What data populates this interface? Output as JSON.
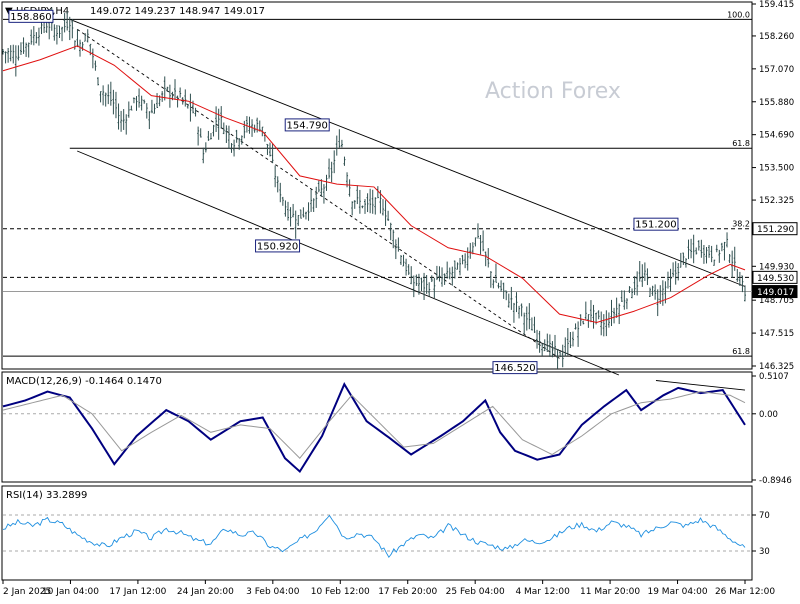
{
  "header": {
    "symbol": "USDJPY,H4",
    "ohlc": "149.072 149.237 148.947 149.017"
  },
  "watermark": "Action Forex",
  "chart_data": [
    {
      "type": "candlestick",
      "panel": "price",
      "symbol": "USDJPY",
      "timeframe": "H4",
      "ylim": [
        146.325,
        159.415
      ],
      "y_ticks": [
        "159.415",
        "158.260",
        "157.070",
        "155.880",
        "154.690",
        "153.500",
        "152.325",
        "151.290",
        "149.930",
        "148.705",
        "147.515",
        "146.325"
      ],
      "x_ticks": [
        "2 Jan 2025",
        "10 Jan 04:00",
        "17 Jan 12:00",
        "24 Jan 20:00",
        "3 Feb 04:00",
        "10 Feb 12:00",
        "17 Feb 20:00",
        "25 Feb 04:00",
        "4 Mar 12:00",
        "11 Mar 20:00",
        "19 Mar 04:00",
        "26 Mar 12:00"
      ],
      "close_series": [
        {
          "t": 0,
          "v": 157.7
        },
        {
          "t": 0.02,
          "v": 157.6
        },
        {
          "t": 0.04,
          "v": 158.2
        },
        {
          "t": 0.06,
          "v": 158.7
        },
        {
          "t": 0.075,
          "v": 158.4
        },
        {
          "t": 0.09,
          "v": 158.8
        },
        {
          "t": 0.1,
          "v": 157.9
        },
        {
          "t": 0.115,
          "v": 158.3
        },
        {
          "t": 0.13,
          "v": 156.4
        },
        {
          "t": 0.15,
          "v": 155.8
        },
        {
          "t": 0.16,
          "v": 155.1
        },
        {
          "t": 0.18,
          "v": 156.0
        },
        {
          "t": 0.2,
          "v": 155.5
        },
        {
          "t": 0.22,
          "v": 156.3
        },
        {
          "t": 0.24,
          "v": 156.0
        },
        {
          "t": 0.26,
          "v": 155.4
        },
        {
          "t": 0.27,
          "v": 154.0
        },
        {
          "t": 0.29,
          "v": 155.4
        },
        {
          "t": 0.31,
          "v": 154.4
        },
        {
          "t": 0.33,
          "v": 155.0
        },
        {
          "t": 0.35,
          "v": 155.0
        },
        {
          "t": 0.37,
          "v": 152.9
        },
        {
          "t": 0.385,
          "v": 151.8
        },
        {
          "t": 0.4,
          "v": 151.7
        },
        {
          "t": 0.42,
          "v": 152.3
        },
        {
          "t": 0.44,
          "v": 153.1
        },
        {
          "t": 0.455,
          "v": 154.6
        },
        {
          "t": 0.47,
          "v": 152.4
        },
        {
          "t": 0.49,
          "v": 152.1
        },
        {
          "t": 0.51,
          "v": 152.3
        },
        {
          "t": 0.53,
          "v": 150.8
        },
        {
          "t": 0.55,
          "v": 149.4
        },
        {
          "t": 0.57,
          "v": 149.2
        },
        {
          "t": 0.6,
          "v": 149.6
        },
        {
          "t": 0.62,
          "v": 150.0
        },
        {
          "t": 0.64,
          "v": 151.1
        },
        {
          "t": 0.66,
          "v": 149.5
        },
        {
          "t": 0.68,
          "v": 148.8
        },
        {
          "t": 0.7,
          "v": 148.3
        },
        {
          "t": 0.72,
          "v": 147.4
        },
        {
          "t": 0.74,
          "v": 146.9
        },
        {
          "t": 0.755,
          "v": 146.7
        },
        {
          "t": 0.77,
          "v": 147.5
        },
        {
          "t": 0.79,
          "v": 148.3
        },
        {
          "t": 0.81,
          "v": 147.8
        },
        {
          "t": 0.83,
          "v": 148.5
        },
        {
          "t": 0.85,
          "v": 149.2
        },
        {
          "t": 0.865,
          "v": 149.6
        },
        {
          "t": 0.88,
          "v": 148.8
        },
        {
          "t": 0.9,
          "v": 149.4
        },
        {
          "t": 0.92,
          "v": 150.3
        },
        {
          "t": 0.94,
          "v": 150.6
        },
        {
          "t": 0.96,
          "v": 150.3
        },
        {
          "t": 0.975,
          "v": 150.8
        },
        {
          "t": 0.99,
          "v": 149.6
        },
        {
          "t": 1.0,
          "v": 149.0
        }
      ],
      "ma_series": [
        {
          "t": 0,
          "v": 157.0
        },
        {
          "t": 0.05,
          "v": 157.4
        },
        {
          "t": 0.1,
          "v": 157.9
        },
        {
          "t": 0.15,
          "v": 157.2
        },
        {
          "t": 0.2,
          "v": 156.1
        },
        {
          "t": 0.25,
          "v": 155.9
        },
        {
          "t": 0.3,
          "v": 155.3
        },
        {
          "t": 0.35,
          "v": 154.8
        },
        {
          "t": 0.4,
          "v": 153.2
        },
        {
          "t": 0.45,
          "v": 152.9
        },
        {
          "t": 0.5,
          "v": 152.8
        },
        {
          "t": 0.55,
          "v": 151.4
        },
        {
          "t": 0.6,
          "v": 150.6
        },
        {
          "t": 0.65,
          "v": 150.3
        },
        {
          "t": 0.7,
          "v": 149.5
        },
        {
          "t": 0.75,
          "v": 148.2
        },
        {
          "t": 0.8,
          "v": 147.9
        },
        {
          "t": 0.85,
          "v": 148.3
        },
        {
          "t": 0.9,
          "v": 148.8
        },
        {
          "t": 0.95,
          "v": 149.6
        },
        {
          "t": 0.98,
          "v": 150.0
        },
        {
          "t": 1.0,
          "v": 149.8
        }
      ],
      "horizontal_levels": [
        {
          "value": 158.86,
          "label": "100.0",
          "style": "solid"
        },
        {
          "value": 154.2,
          "label": "61.8",
          "style": "solid"
        },
        {
          "value": 151.29,
          "label": "38.2",
          "style": "dashed"
        },
        {
          "value": 149.53,
          "label": "",
          "style": "dashed"
        },
        {
          "value": 149.017,
          "label": "",
          "style": "current"
        },
        {
          "value": 146.68,
          "label": "61.8",
          "style": "solid"
        }
      ],
      "trendlines": [
        {
          "t0": 0.09,
          "v0": 158.86,
          "t1": 1.0,
          "v1": 149.2,
          "style": "solid"
        },
        {
          "t0": 0.1,
          "v0": 154.1,
          "t1": 0.83,
          "v1": 146.0,
          "style": "solid"
        },
        {
          "t0": 0.1,
          "v0": 158.5,
          "t1": 0.75,
          "v1": 146.6,
          "style": "dashed"
        }
      ],
      "annotations": [
        {
          "label": "158.860",
          "t": 0.07,
          "v": 158.86
        },
        {
          "label": "154.790",
          "t": 0.41,
          "v": 154.79
        },
        {
          "label": "150.920",
          "t": 0.37,
          "v": 150.92
        },
        {
          "label": "151.200",
          "t": 0.88,
          "v": 151.2
        },
        {
          "label": "146.520",
          "t": 0.69,
          "v": 146.52
        }
      ],
      "price_labels": [
        {
          "label": "151.290",
          "v": 151.29,
          "style": "dashed"
        },
        {
          "label": "149.530",
          "v": 149.53,
          "style": "dashed"
        },
        {
          "label": "149.017",
          "v": 149.017,
          "style": "current"
        }
      ]
    },
    {
      "type": "line",
      "panel": "macd",
      "title": "MACD(12,26,9) -0.1464 0.1470",
      "ylim": [
        -0.8946,
        0.5107
      ],
      "y_ticks": [
        "0.5107",
        "0.00",
        "-0.8946"
      ],
      "series": [
        {
          "name": "MACD",
          "color": "#000080",
          "values": [
            {
              "t": 0,
              "v": 0.1
            },
            {
              "t": 0.03,
              "v": 0.18
            },
            {
              "t": 0.06,
              "v": 0.3
            },
            {
              "t": 0.09,
              "v": 0.22
            },
            {
              "t": 0.12,
              "v": -0.2
            },
            {
              "t": 0.15,
              "v": -0.68
            },
            {
              "t": 0.18,
              "v": -0.3
            },
            {
              "t": 0.22,
              "v": 0.05
            },
            {
              "t": 0.25,
              "v": -0.1
            },
            {
              "t": 0.28,
              "v": -0.35
            },
            {
              "t": 0.32,
              "v": -0.1
            },
            {
              "t": 0.35,
              "v": -0.05
            },
            {
              "t": 0.38,
              "v": -0.6
            },
            {
              "t": 0.4,
              "v": -0.78
            },
            {
              "t": 0.43,
              "v": -0.3
            },
            {
              "t": 0.46,
              "v": 0.4
            },
            {
              "t": 0.49,
              "v": -0.1
            },
            {
              "t": 0.52,
              "v": -0.32
            },
            {
              "t": 0.55,
              "v": -0.55
            },
            {
              "t": 0.59,
              "v": -0.3
            },
            {
              "t": 0.62,
              "v": -0.1
            },
            {
              "t": 0.65,
              "v": 0.18
            },
            {
              "t": 0.67,
              "v": -0.25
            },
            {
              "t": 0.69,
              "v": -0.5
            },
            {
              "t": 0.72,
              "v": -0.62
            },
            {
              "t": 0.75,
              "v": -0.55
            },
            {
              "t": 0.78,
              "v": -0.15
            },
            {
              "t": 0.81,
              "v": 0.1
            },
            {
              "t": 0.84,
              "v": 0.32
            },
            {
              "t": 0.86,
              "v": 0.05
            },
            {
              "t": 0.89,
              "v": 0.25
            },
            {
              "t": 0.91,
              "v": 0.35
            },
            {
              "t": 0.94,
              "v": 0.28
            },
            {
              "t": 0.97,
              "v": 0.32
            },
            {
              "t": 1.0,
              "v": -0.15
            }
          ]
        },
        {
          "name": "Signal",
          "color": "#999999",
          "values": [
            {
              "t": 0,
              "v": 0.05
            },
            {
              "t": 0.04,
              "v": 0.15
            },
            {
              "t": 0.08,
              "v": 0.25
            },
            {
              "t": 0.12,
              "v": 0.0
            },
            {
              "t": 0.16,
              "v": -0.5
            },
            {
              "t": 0.2,
              "v": -0.25
            },
            {
              "t": 0.24,
              "v": -0.02
            },
            {
              "t": 0.28,
              "v": -0.25
            },
            {
              "t": 0.32,
              "v": -0.15
            },
            {
              "t": 0.36,
              "v": -0.2
            },
            {
              "t": 0.4,
              "v": -0.6
            },
            {
              "t": 0.44,
              "v": -0.1
            },
            {
              "t": 0.47,
              "v": 0.25
            },
            {
              "t": 0.5,
              "v": -0.05
            },
            {
              "t": 0.54,
              "v": -0.45
            },
            {
              "t": 0.58,
              "v": -0.4
            },
            {
              "t": 0.62,
              "v": -0.15
            },
            {
              "t": 0.66,
              "v": 0.1
            },
            {
              "t": 0.7,
              "v": -0.35
            },
            {
              "t": 0.74,
              "v": -0.55
            },
            {
              "t": 0.78,
              "v": -0.3
            },
            {
              "t": 0.82,
              "v": 0.0
            },
            {
              "t": 0.86,
              "v": 0.15
            },
            {
              "t": 0.9,
              "v": 0.2
            },
            {
              "t": 0.94,
              "v": 0.3
            },
            {
              "t": 0.98,
              "v": 0.25
            },
            {
              "t": 1.0,
              "v": 0.15
            }
          ]
        }
      ],
      "trendlines": [
        {
          "t0": 0.88,
          "v0": 0.45,
          "t1": 1.0,
          "v1": 0.32
        }
      ]
    },
    {
      "type": "line",
      "panel": "rsi",
      "title": "RSI(14) 33.2899",
      "ylim": [
        0,
        100
      ],
      "y_ticks": [
        "70",
        "30"
      ],
      "levels": [
        70,
        30
      ],
      "series": [
        {
          "name": "RSI",
          "color": "#1e8fe0",
          "values": [
            {
              "t": 0,
              "v": 55
            },
            {
              "t": 0.02,
              "v": 62
            },
            {
              "t": 0.04,
              "v": 58
            },
            {
              "t": 0.06,
              "v": 65
            },
            {
              "t": 0.08,
              "v": 60
            },
            {
              "t": 0.1,
              "v": 48
            },
            {
              "t": 0.12,
              "v": 40
            },
            {
              "t": 0.14,
              "v": 35
            },
            {
              "t": 0.16,
              "v": 45
            },
            {
              "t": 0.18,
              "v": 52
            },
            {
              "t": 0.2,
              "v": 44
            },
            {
              "t": 0.22,
              "v": 55
            },
            {
              "t": 0.24,
              "v": 50
            },
            {
              "t": 0.26,
              "v": 42
            },
            {
              "t": 0.28,
              "v": 38
            },
            {
              "t": 0.3,
              "v": 55
            },
            {
              "t": 0.32,
              "v": 48
            },
            {
              "t": 0.34,
              "v": 50
            },
            {
              "t": 0.36,
              "v": 35
            },
            {
              "t": 0.38,
              "v": 30
            },
            {
              "t": 0.4,
              "v": 42
            },
            {
              "t": 0.42,
              "v": 52
            },
            {
              "t": 0.44,
              "v": 72
            },
            {
              "t": 0.46,
              "v": 45
            },
            {
              "t": 0.48,
              "v": 50
            },
            {
              "t": 0.5,
              "v": 44
            },
            {
              "t": 0.52,
              "v": 25
            },
            {
              "t": 0.54,
              "v": 38
            },
            {
              "t": 0.56,
              "v": 48
            },
            {
              "t": 0.58,
              "v": 44
            },
            {
              "t": 0.6,
              "v": 58
            },
            {
              "t": 0.62,
              "v": 48
            },
            {
              "t": 0.64,
              "v": 40
            },
            {
              "t": 0.66,
              "v": 36
            },
            {
              "t": 0.68,
              "v": 32
            },
            {
              "t": 0.7,
              "v": 42
            },
            {
              "t": 0.72,
              "v": 40
            },
            {
              "t": 0.74,
              "v": 44
            },
            {
              "t": 0.76,
              "v": 55
            },
            {
              "t": 0.78,
              "v": 60
            },
            {
              "t": 0.8,
              "v": 52
            },
            {
              "t": 0.82,
              "v": 62
            },
            {
              "t": 0.84,
              "v": 58
            },
            {
              "t": 0.86,
              "v": 48
            },
            {
              "t": 0.88,
              "v": 55
            },
            {
              "t": 0.9,
              "v": 62
            },
            {
              "t": 0.92,
              "v": 58
            },
            {
              "t": 0.94,
              "v": 65
            },
            {
              "t": 0.96,
              "v": 56
            },
            {
              "t": 0.98,
              "v": 44
            },
            {
              "t": 1.0,
              "v": 33
            }
          ]
        }
      ]
    }
  ]
}
